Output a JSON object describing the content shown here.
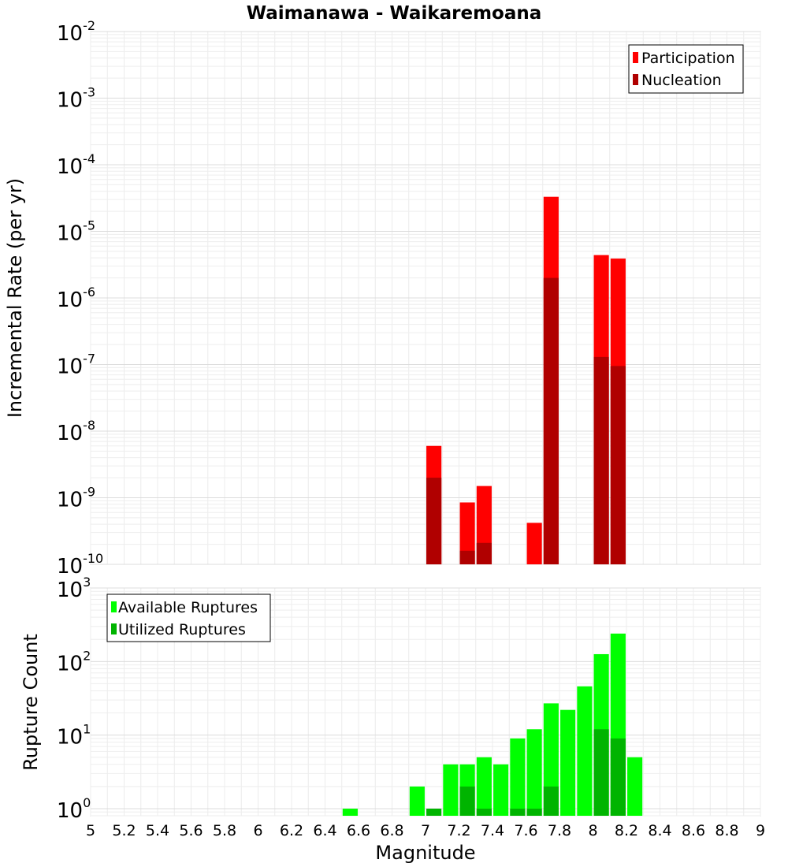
{
  "chart_data": [
    {
      "type": "bar",
      "title": "Waimanawa - Waikaremoana",
      "xlabel": "Magnitude",
      "ylabel": "Incremental Rate (per yr)",
      "xlim": [
        5,
        9
      ],
      "ylim": [
        1e-10,
        0.01
      ],
      "yscale": "log",
      "grid": true,
      "legend_position": "top-right",
      "bar_width": 0.09,
      "x_ticks": [
        "5",
        "5.2",
        "5.4",
        "5.6",
        "5.8",
        "6",
        "6.2",
        "6.4",
        "6.6",
        "6.8",
        "7",
        "7.2",
        "7.4",
        "7.6",
        "7.8",
        "8",
        "8.2",
        "8.4",
        "8.6",
        "8.8",
        "9"
      ],
      "y_ticks": [
        {
          "base": "10",
          "exp": "-10"
        },
        {
          "base": "10",
          "exp": "-9"
        },
        {
          "base": "10",
          "exp": "-8"
        },
        {
          "base": "10",
          "exp": "-7"
        },
        {
          "base": "10",
          "exp": "-6"
        },
        {
          "base": "10",
          "exp": "-5"
        },
        {
          "base": "10",
          "exp": "-4"
        },
        {
          "base": "10",
          "exp": "-3"
        },
        {
          "base": "10",
          "exp": "-2"
        }
      ],
      "series": [
        {
          "name": "Participation",
          "color": "#ff0000",
          "points": [
            {
              "x": 7.05,
              "y": 6e-09
            },
            {
              "x": 7.25,
              "y": 8.5e-10
            },
            {
              "x": 7.35,
              "y": 1.5e-09
            },
            {
              "x": 7.65,
              "y": 4.2e-10
            },
            {
              "x": 7.75,
              "y": 3.3e-05
            },
            {
              "x": 8.05,
              "y": 4.4e-06
            },
            {
              "x": 8.15,
              "y": 3.9e-06
            }
          ]
        },
        {
          "name": "Nucleation",
          "color": "#b00000",
          "points": [
            {
              "x": 7.05,
              "y": 2e-09
            },
            {
              "x": 7.25,
              "y": 1.6e-10
            },
            {
              "x": 7.35,
              "y": 2.1e-10
            },
            {
              "x": 7.75,
              "y": 2e-06
            },
            {
              "x": 8.05,
              "y": 1.3e-07
            },
            {
              "x": 8.15,
              "y": 9.5e-08
            }
          ]
        }
      ]
    },
    {
      "type": "bar",
      "xlabel": "Magnitude",
      "ylabel": "Rupture Count",
      "xlim": [
        5,
        9
      ],
      "ylim": [
        0.8,
        1000
      ],
      "yscale": "log",
      "grid": true,
      "legend_position": "top-left",
      "bar_width": 0.09,
      "x_ticks": [
        "5",
        "5.2",
        "5.4",
        "5.6",
        "5.8",
        "6",
        "6.2",
        "6.4",
        "6.6",
        "6.8",
        "7",
        "7.2",
        "7.4",
        "7.6",
        "7.8",
        "8",
        "8.2",
        "8.4",
        "8.6",
        "8.8",
        "9"
      ],
      "y_ticks": [
        {
          "base": "10",
          "exp": "0"
        },
        {
          "base": "10",
          "exp": "1"
        },
        {
          "base": "10",
          "exp": "2"
        },
        {
          "base": "10",
          "exp": "3"
        }
      ],
      "series": [
        {
          "name": "Available Ruptures",
          "color": "#00ff00",
          "points": [
            {
              "x": 6.55,
              "y": 1
            },
            {
              "x": 6.95,
              "y": 2
            },
            {
              "x": 7.15,
              "y": 4
            },
            {
              "x": 7.25,
              "y": 4
            },
            {
              "x": 7.35,
              "y": 5
            },
            {
              "x": 7.45,
              "y": 4
            },
            {
              "x": 7.55,
              "y": 9
            },
            {
              "x": 7.65,
              "y": 12
            },
            {
              "x": 7.75,
              "y": 27
            },
            {
              "x": 7.85,
              "y": 22
            },
            {
              "x": 7.95,
              "y": 46
            },
            {
              "x": 8.05,
              "y": 126
            },
            {
              "x": 8.15,
              "y": 240
            },
            {
              "x": 8.25,
              "y": 5
            }
          ]
        },
        {
          "name": "Utilized Ruptures",
          "color": "#00b400",
          "points": [
            {
              "x": 7.05,
              "y": 1
            },
            {
              "x": 7.25,
              "y": 2
            },
            {
              "x": 7.35,
              "y": 1
            },
            {
              "x": 7.55,
              "y": 1
            },
            {
              "x": 7.65,
              "y": 1
            },
            {
              "x": 7.75,
              "y": 2
            },
            {
              "x": 8.05,
              "y": 12
            },
            {
              "x": 8.15,
              "y": 9
            }
          ]
        }
      ]
    }
  ]
}
